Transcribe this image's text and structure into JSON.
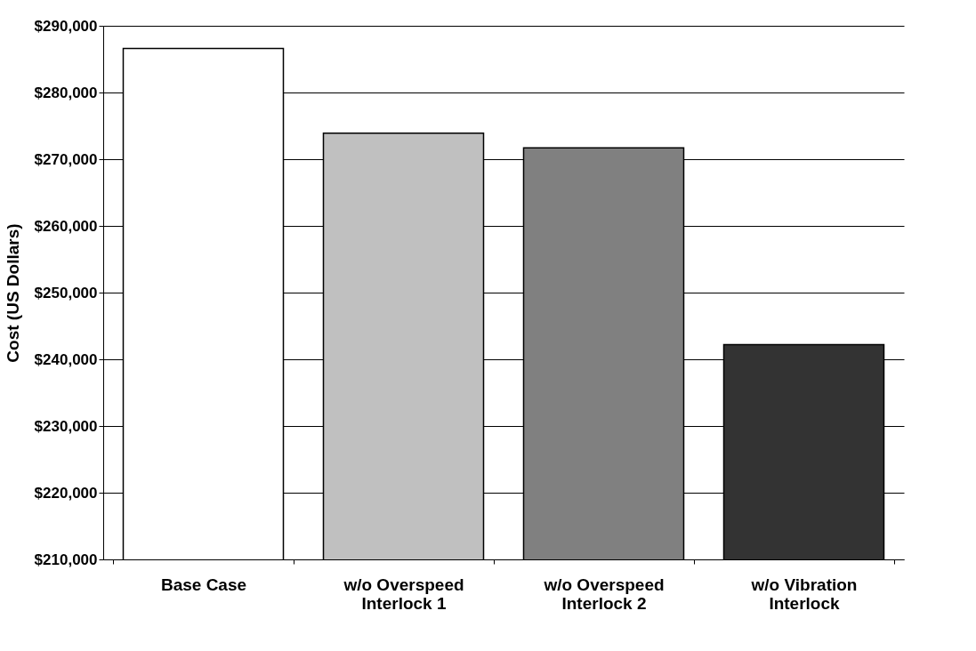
{
  "chart_data": {
    "type": "bar",
    "categories": [
      "Base Case",
      "w/o Overspeed\nInterlock 1",
      "w/o Overspeed\nInterlock 2",
      "w/o Vibration\nInterlock"
    ],
    "values": [
      286600,
      273900,
      271700,
      242200
    ],
    "colors": [
      "#ffffff",
      "#c0c0c0",
      "#808080",
      "#333333"
    ],
    "ylabel": "Cost (US Dollars)",
    "ylim": [
      210000,
      290000
    ],
    "yticks": [
      {
        "value": 210000,
        "label": "$210,000"
      },
      {
        "value": 220000,
        "label": "$220,000"
      },
      {
        "value": 230000,
        "label": "$230,000"
      },
      {
        "value": 240000,
        "label": "$240,000"
      },
      {
        "value": 250000,
        "label": "$250,000"
      },
      {
        "value": 260000,
        "label": "$260,000"
      },
      {
        "value": 270000,
        "label": "$270,000"
      },
      {
        "value": 280000,
        "label": "$280,000"
      },
      {
        "value": 290000,
        "label": "$290,000"
      }
    ],
    "grid": "y"
  }
}
